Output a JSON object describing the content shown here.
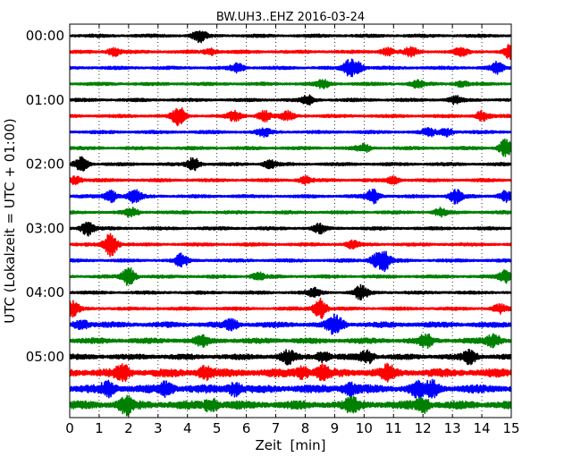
{
  "chart_data": {
    "type": "line",
    "title": "BW.UH3..EHZ 2016-03-24",
    "xlabel": "Zeit  [min]",
    "ylabel": "UTC (Lokalzeit = UTC + 01:00)",
    "xlim": [
      0,
      15
    ],
    "x_ticks": [
      0,
      1,
      2,
      3,
      4,
      5,
      6,
      7,
      8,
      9,
      10,
      11,
      12,
      13,
      14,
      15
    ],
    "y_tick_labels": [
      "00:00",
      "01:00",
      "02:00",
      "03:00",
      "04:00",
      "05:00"
    ],
    "y_tick_rows": [
      0,
      4,
      8,
      12,
      16,
      20
    ],
    "grid": "vertical dotted",
    "series_colors": [
      "#000000",
      "#ff0000",
      "#0000ff",
      "#008000"
    ],
    "traces": [
      {
        "start": "00:00",
        "events": [
          [
            4.4,
            1.3
          ]
        ]
      },
      {
        "start": "00:15",
        "events": [
          [
            1.5,
            0.9
          ],
          [
            4.8,
            0.7
          ],
          [
            10.8,
            0.8
          ],
          [
            11.6,
            0.9
          ],
          [
            13.3,
            0.8
          ],
          [
            15.0,
            1.6
          ]
        ]
      },
      {
        "start": "00:30",
        "events": [
          [
            5.7,
            0.9
          ],
          [
            9.5,
            1.6
          ],
          [
            9.8,
            1.0
          ],
          [
            14.5,
            1.1
          ]
        ]
      },
      {
        "start": "00:45",
        "events": [
          [
            8.6,
            0.8
          ],
          [
            11.8,
            0.7
          ],
          [
            13.3,
            0.6
          ]
        ]
      },
      {
        "start": "01:00",
        "events": [
          [
            8.1,
            0.9
          ],
          [
            13.1,
            0.8
          ]
        ]
      },
      {
        "start": "01:15",
        "events": [
          [
            3.7,
            2.0
          ],
          [
            5.6,
            1.0
          ],
          [
            6.6,
            1.2
          ],
          [
            7.4,
            0.9
          ],
          [
            14.0,
            1.0
          ]
        ]
      },
      {
        "start": "01:30",
        "events": [
          [
            6.6,
            0.8
          ],
          [
            12.2,
            0.8
          ],
          [
            12.8,
            0.8
          ]
        ]
      },
      {
        "start": "01:45",
        "events": [
          [
            10.0,
            0.8
          ],
          [
            14.8,
            1.8
          ]
        ]
      },
      {
        "start": "02:00",
        "events": [
          [
            0.4,
            1.4
          ],
          [
            4.2,
            1.4
          ],
          [
            6.8,
            0.8
          ]
        ]
      },
      {
        "start": "02:15",
        "events": [
          [
            0.2,
            0.9
          ],
          [
            8.0,
            0.8
          ],
          [
            11.0,
            0.8
          ]
        ]
      },
      {
        "start": "02:30",
        "events": [
          [
            1.4,
            1.3
          ],
          [
            2.2,
            1.5
          ],
          [
            10.3,
            1.6
          ],
          [
            13.1,
            1.5
          ],
          [
            14.8,
            1.2
          ]
        ]
      },
      {
        "start": "02:45",
        "events": [
          [
            2.1,
            0.9
          ],
          [
            12.6,
            0.8
          ]
        ]
      },
      {
        "start": "03:00",
        "events": [
          [
            0.6,
            1.5
          ],
          [
            8.5,
            0.9
          ]
        ]
      },
      {
        "start": "03:15",
        "events": [
          [
            1.4,
            2.6
          ],
          [
            9.6,
            0.8
          ]
        ]
      },
      {
        "start": "03:30",
        "events": [
          [
            3.8,
            1.3
          ],
          [
            10.4,
            1.2
          ],
          [
            10.7,
            2.0
          ]
        ]
      },
      {
        "start": "03:45",
        "events": [
          [
            2.0,
            2.0
          ],
          [
            6.4,
            0.8
          ],
          [
            14.8,
            1.3
          ]
        ]
      },
      {
        "start": "04:00",
        "events": [
          [
            8.3,
            0.9
          ],
          [
            9.9,
            1.5
          ]
        ]
      },
      {
        "start": "04:15",
        "events": [
          [
            0.1,
            1.5
          ],
          [
            8.5,
            2.2
          ],
          [
            14.6,
            0.9
          ]
        ]
      },
      {
        "start": "04:30",
        "events": [
          [
            0.4,
            1.1
          ],
          [
            5.5,
            0.9
          ],
          [
            8.9,
            1.0
          ],
          [
            9.1,
            1.3
          ]
        ]
      },
      {
        "start": "04:45",
        "events": [
          [
            4.5,
            0.9
          ],
          [
            12.1,
            1.2
          ],
          [
            14.4,
            1.5
          ]
        ]
      },
      {
        "start": "05:00",
        "events": [
          [
            7.4,
            1.4
          ],
          [
            8.6,
            1.1
          ],
          [
            10.1,
            1.4
          ],
          [
            13.6,
            1.3
          ]
        ]
      },
      {
        "start": "05:15",
        "events": [
          [
            1.8,
            1.4
          ],
          [
            4.6,
            1.2
          ],
          [
            7.9,
            1.2
          ],
          [
            8.6,
            1.2
          ],
          [
            10.8,
            1.4
          ]
        ]
      },
      {
        "start": "05:30",
        "events": [
          [
            1.3,
            1.3
          ],
          [
            3.3,
            1.3
          ],
          [
            5.6,
            1.3
          ],
          [
            9.5,
            1.4
          ],
          [
            11.8,
            1.4
          ],
          [
            12.3,
            1.5
          ]
        ]
      },
      {
        "start": "05:45",
        "events": [
          [
            1.9,
            1.6
          ],
          [
            4.8,
            1.3
          ],
          [
            9.6,
            1.4
          ],
          [
            12.0,
            1.5
          ]
        ]
      }
    ]
  }
}
